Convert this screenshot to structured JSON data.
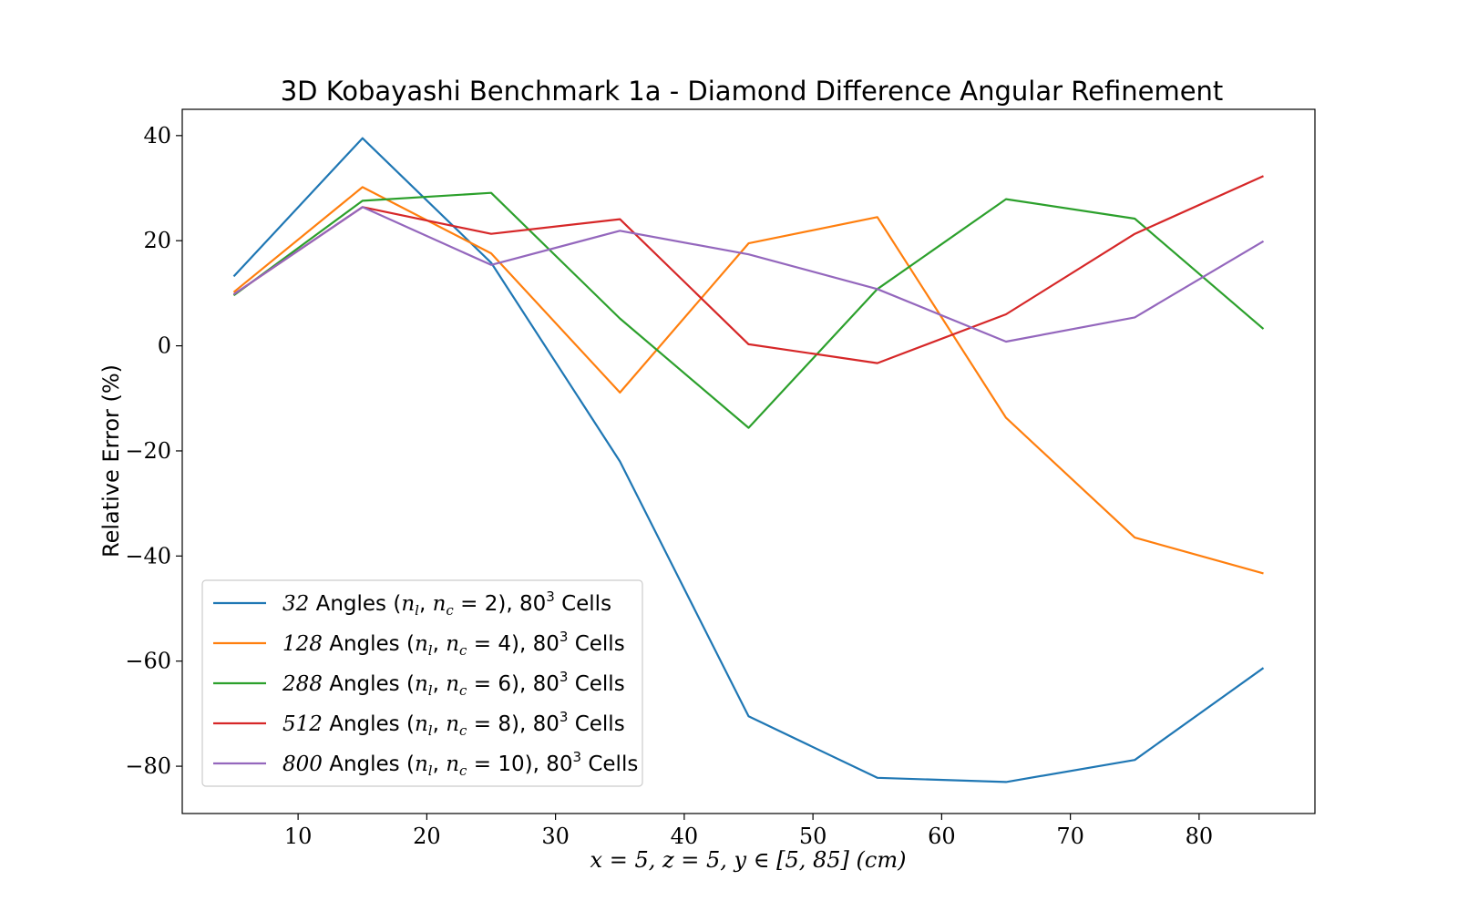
{
  "chart_data": {
    "type": "line",
    "title": "3D Kobayashi Benchmark 1a - Diamond Difference Angular Refinement",
    "xlabel": "x = 5, z = 5, y ∈ [5, 85] (cm)",
    "ylabel": "Relative Error (%)",
    "xlim": [
      1,
      89
    ],
    "ylim": [
      -89,
      45
    ],
    "xticks": [
      10,
      20,
      30,
      40,
      50,
      60,
      70,
      80
    ],
    "yticks": [
      40,
      20,
      0,
      -20,
      -40,
      -60,
      -80
    ],
    "grid": false,
    "legend_position": "lower-left",
    "x": [
      5,
      15,
      25,
      35,
      45,
      55,
      65,
      75,
      85
    ],
    "series": [
      {
        "name": "32 Angles (n_l, n_c = 2), 80^3 Cells",
        "legend": {
          "num": "32",
          "nval": "2"
        },
        "color": "#1f77b4",
        "values": [
          13.2,
          39.5,
          15.8,
          -22.0,
          -70.5,
          -82.2,
          -83.0,
          -78.8,
          -61.3
        ]
      },
      {
        "name": "128 Angles (n_l, n_c = 4), 80^3 Cells",
        "legend": {
          "num": "128",
          "nval": "4"
        },
        "color": "#ff7f0e",
        "values": [
          10.2,
          30.2,
          17.6,
          -8.9,
          19.5,
          24.5,
          -13.7,
          -36.5,
          -43.3
        ]
      },
      {
        "name": "288 Angles (n_l, n_c = 6), 80^3 Cells",
        "legend": {
          "num": "288",
          "nval": "6"
        },
        "color": "#2ca02c",
        "values": [
          9.6,
          27.6,
          29.1,
          5.2,
          -15.6,
          10.8,
          27.9,
          24.2,
          3.2
        ]
      },
      {
        "name": "512 Angles (n_l, n_c = 8), 80^3 Cells",
        "legend": {
          "num": "512",
          "nval": "8"
        },
        "color": "#d62728",
        "values": [
          9.8,
          26.4,
          21.3,
          24.1,
          0.3,
          -3.3,
          6.0,
          21.3,
          32.3
        ]
      },
      {
        "name": "800 Angles (n_l, n_c = 10), 80^3 Cells",
        "legend": {
          "num": "800",
          "nval": "10"
        },
        "color": "#9467bd",
        "values": [
          9.8,
          26.4,
          15.4,
          21.9,
          17.4,
          10.8,
          0.8,
          5.4,
          19.9
        ]
      }
    ],
    "legend_words": {
      "angles": "Angles",
      "cells": "Cells",
      "cells_base": "80",
      "cells_exp": "3",
      "nl": "n",
      "nl_sub": "l",
      "nc_sub": "c"
    }
  }
}
